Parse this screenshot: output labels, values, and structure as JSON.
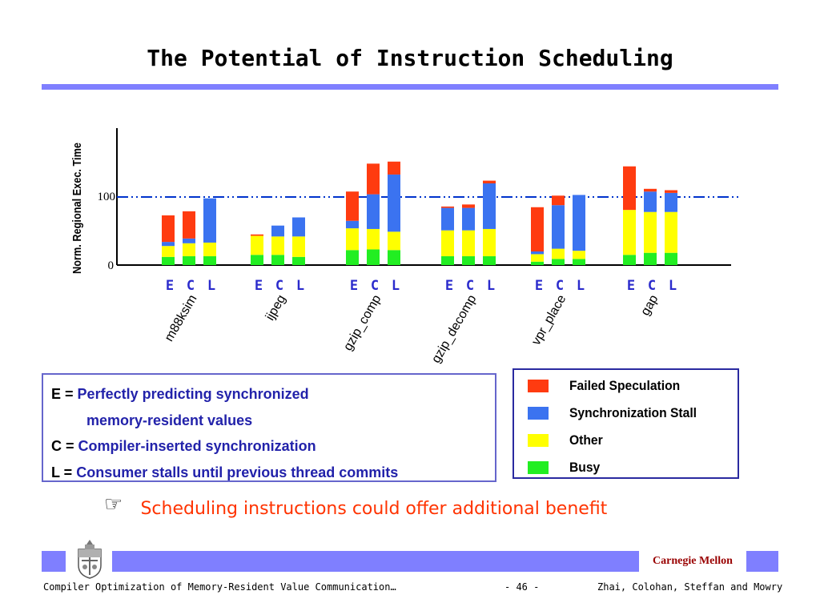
{
  "slide": {
    "title": "The Potential of Instruction Scheduling",
    "note_text": "Scheduling instructions could offer additional benefit",
    "note_icon": "pointing-hand-icon"
  },
  "legend_left": {
    "e_key": "E =",
    "e_text_1": "Perfectly predicting synchronized",
    "e_text_2": "memory-resident values",
    "c_key": "C =",
    "c_text": "Compiler-inserted synchronization",
    "l_key": "L =",
    "l_text": "Consumer stalls until previous thread commits"
  },
  "footer": {
    "left": "Compiler Optimization of Memory-Resident Value Communication…",
    "center": "- 46 -",
    "right": "Zhai, Colohan, Steffan and Mowry",
    "brand": "Carnegie Mellon"
  },
  "chart_data": {
    "type": "stacked-bar",
    "ylabel": "Norm. Regional Exec. Time",
    "yticks": [
      "0",
      "100"
    ],
    "ylim": [
      0,
      200
    ],
    "reference_line": 100,
    "bar_labels": [
      "E",
      "C",
      "L"
    ],
    "benchmarks": [
      "m88ksim",
      "ijpeg",
      "gzip_comp",
      "gzip_decomp",
      "vpr_place",
      "gap"
    ],
    "colors": {
      "Busy": "#22ee22",
      "Other": "#ffff00",
      "Synchronization Stall": "#3b73f0",
      "Failed Speculation": "#ff3b10"
    },
    "legend": [
      "Failed Speculation",
      "Synchronization Stall",
      "Other",
      "Busy"
    ],
    "series_order": [
      "Busy",
      "Other",
      "Synchronization Stall",
      "Failed Speculation"
    ],
    "groups": [
      {
        "benchmark": "m88ksim",
        "bars": [
          {
            "label": "E",
            "Busy": 12,
            "Other": 16,
            "Synchronization Stall": 6,
            "Failed Speculation": 39
          },
          {
            "label": "C",
            "Busy": 13,
            "Other": 19,
            "Synchronization Stall": 7,
            "Failed Speculation": 40
          },
          {
            "label": "L",
            "Busy": 13,
            "Other": 20,
            "Synchronization Stall": 65,
            "Failed Speculation": 0
          }
        ]
      },
      {
        "benchmark": "ijpeg",
        "bars": [
          {
            "label": "E",
            "Busy": 15,
            "Other": 28,
            "Synchronization Stall": 0,
            "Failed Speculation": 2
          },
          {
            "label": "C",
            "Busy": 15,
            "Other": 27,
            "Synchronization Stall": 16,
            "Failed Speculation": 0
          },
          {
            "label": "L",
            "Busy": 12,
            "Other": 30,
            "Synchronization Stall": 28,
            "Failed Speculation": 0
          }
        ]
      },
      {
        "benchmark": "gzip_comp",
        "bars": [
          {
            "label": "E",
            "Busy": 22,
            "Other": 32,
            "Synchronization Stall": 11,
            "Failed Speculation": 43
          },
          {
            "label": "C",
            "Busy": 23,
            "Other": 30,
            "Synchronization Stall": 51,
            "Failed Speculation": 45
          },
          {
            "label": "L",
            "Busy": 22,
            "Other": 27,
            "Synchronization Stall": 84,
            "Failed Speculation": 19
          }
        ]
      },
      {
        "benchmark": "gzip_decomp",
        "bars": [
          {
            "label": "E",
            "Busy": 13,
            "Other": 38,
            "Synchronization Stall": 33,
            "Failed Speculation": 2
          },
          {
            "label": "C",
            "Busy": 13,
            "Other": 38,
            "Synchronization Stall": 33,
            "Failed Speculation": 5
          },
          {
            "label": "L",
            "Busy": 13,
            "Other": 40,
            "Synchronization Stall": 67,
            "Failed Speculation": 4
          }
        ]
      },
      {
        "benchmark": "vpr_place",
        "bars": [
          {
            "label": "E",
            "Busy": 5,
            "Other": 11,
            "Synchronization Stall": 4,
            "Failed Speculation": 65
          },
          {
            "label": "C",
            "Busy": 9,
            "Other": 15,
            "Synchronization Stall": 64,
            "Failed Speculation": 14
          },
          {
            "label": "L",
            "Busy": 9,
            "Other": 12,
            "Synchronization Stall": 82,
            "Failed Speculation": 0
          }
        ]
      },
      {
        "benchmark": "gap",
        "bars": [
          {
            "label": "E",
            "Busy": 15,
            "Other": 66,
            "Synchronization Stall": 0,
            "Failed Speculation": 64
          },
          {
            "label": "C",
            "Busy": 18,
            "Other": 60,
            "Synchronization Stall": 30,
            "Failed Speculation": 4
          },
          {
            "label": "L",
            "Busy": 18,
            "Other": 60,
            "Synchronization Stall": 28,
            "Failed Speculation": 4
          }
        ]
      }
    ]
  }
}
